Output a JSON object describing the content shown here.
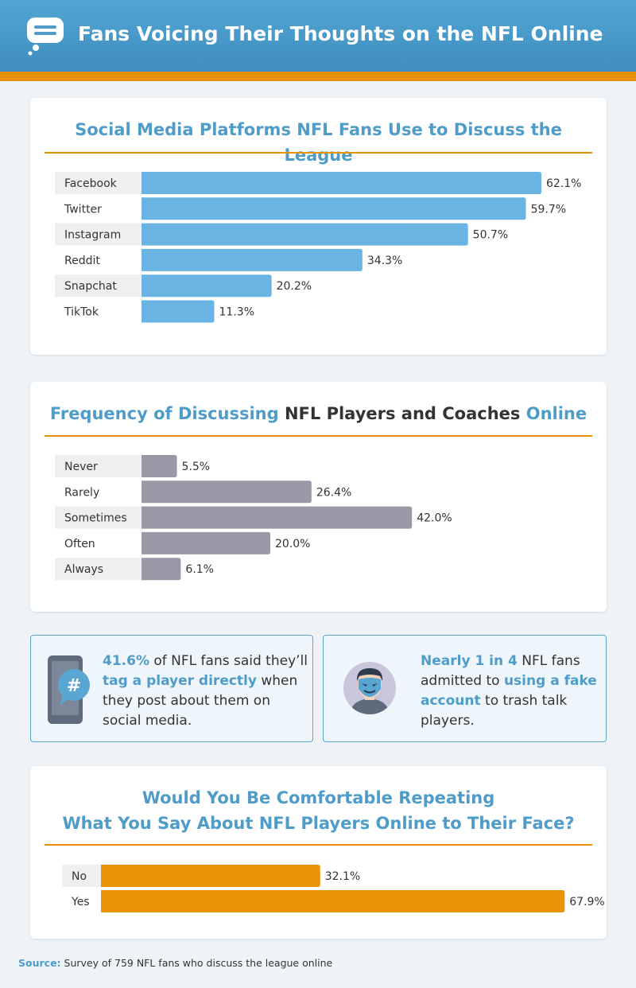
{
  "header": {
    "title": "Fans Voicing Their Thoughts on the NFL Online",
    "icon": "speech-bubble-icon"
  },
  "colors": {
    "blue": "#6ab4e3",
    "gray": "#9a98a6",
    "orange": "#ec9206",
    "accent": "#e8900a",
    "title_blue": "#4f9cc9"
  },
  "chart_data": [
    {
      "type": "bar",
      "orientation": "horizontal",
      "title": "Social Media Platforms NFL Fans Use to Discuss the League",
      "categories": [
        "Facebook",
        "Twitter",
        "Instagram",
        "Reddit",
        "Snapchat",
        "TikTok"
      ],
      "values": [
        62.1,
        59.7,
        50.7,
        34.3,
        20.2,
        11.3
      ],
      "labels": [
        "62.1%",
        "59.7%",
        "50.7%",
        "34.3%",
        "20.2%",
        "11.3%"
      ],
      "unit": "%",
      "xlim": [
        0,
        100
      ],
      "color": "#6ab4e3"
    },
    {
      "type": "bar",
      "orientation": "horizontal",
      "title_parts": [
        {
          "text": "Frequency of Discussing ",
          "style": "blue"
        },
        {
          "text": "NFL Players and Coaches ",
          "style": "dark"
        },
        {
          "text": "Online",
          "style": "blue"
        }
      ],
      "categories": [
        "Never",
        "Rarely",
        "Sometimes",
        "Often",
        "Always"
      ],
      "values": [
        5.5,
        26.4,
        42.0,
        20.0,
        6.1
      ],
      "labels": [
        "5.5%",
        "26.4%",
        "42.0%",
        "20.0%",
        "6.1%"
      ],
      "unit": "%",
      "xlim": [
        0,
        100
      ],
      "color": "#9a98a6"
    },
    {
      "type": "bar",
      "orientation": "horizontal",
      "title_lines": [
        "Would You Be Comfortable Repeating",
        "What You Say About NFL Players Online to Their Face?"
      ],
      "categories": [
        "No",
        "Yes"
      ],
      "values": [
        32.1,
        67.9
      ],
      "labels": [
        "32.1%",
        "67.9%"
      ],
      "unit": "%",
      "xlim": [
        0,
        100
      ],
      "color": "#ec9206"
    }
  ],
  "stats": {
    "left": {
      "icon": "phone-hashtag-icon",
      "hl1": "41.6%",
      "t1": " of NFL fans said they’ll ",
      "hl2": "tag a player directly",
      "t2": " when they post about them on social media."
    },
    "right": {
      "icon": "masked-person-icon",
      "hl1": "Nearly 1 in 4",
      "t1": " NFL fans admitted to ",
      "hl2": "using a fake account",
      "t2": " to trash talk players."
    }
  },
  "source": {
    "label": "Source:",
    "text": " Survey of 759 NFL fans who discuss the league online"
  }
}
